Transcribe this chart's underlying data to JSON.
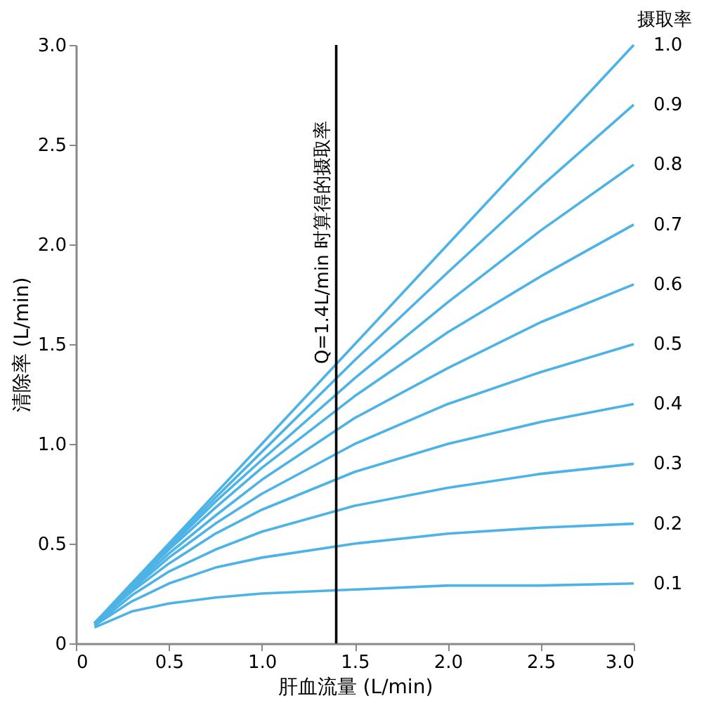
{
  "chart_data": {
    "type": "line",
    "xlabel": "肝血流量 (L/min)",
    "ylabel": "清除率 (L/min)",
    "legend_title": "摄取率",
    "x": [
      0.1,
      0.3,
      0.5,
      0.75,
      1.0,
      1.5,
      2.0,
      2.5,
      3.0
    ],
    "series": [
      {
        "name": "0.1",
        "color": "#4db3e6",
        "values": [
          0.08,
          0.16,
          0.2,
          0.23,
          0.25,
          0.27,
          0.29,
          0.29,
          0.3
        ]
      },
      {
        "name": "0.2",
        "color": "#4db3e6",
        "values": [
          0.09,
          0.21,
          0.3,
          0.38,
          0.43,
          0.5,
          0.55,
          0.58,
          0.6
        ]
      },
      {
        "name": "0.3",
        "color": "#4db3e6",
        "values": [
          0.09,
          0.24,
          0.36,
          0.47,
          0.56,
          0.69,
          0.78,
          0.85,
          0.9
        ]
      },
      {
        "name": "0.4",
        "color": "#4db3e6",
        "values": [
          0.1,
          0.26,
          0.4,
          0.55,
          0.67,
          0.86,
          1.0,
          1.11,
          1.2
        ]
      },
      {
        "name": "0.5",
        "color": "#4db3e6",
        "values": [
          0.1,
          0.27,
          0.43,
          0.6,
          0.75,
          1.0,
          1.2,
          1.36,
          1.5
        ]
      },
      {
        "name": "0.6",
        "color": "#4db3e6",
        "values": [
          0.1,
          0.28,
          0.45,
          0.64,
          0.82,
          1.13,
          1.38,
          1.61,
          1.8
        ]
      },
      {
        "name": "0.7",
        "color": "#4db3e6",
        "values": [
          0.1,
          0.29,
          0.47,
          0.68,
          0.88,
          1.24,
          1.56,
          1.84,
          2.1
        ]
      },
      {
        "name": "0.8",
        "color": "#4db3e6",
        "values": [
          0.1,
          0.29,
          0.48,
          0.71,
          0.92,
          1.33,
          1.71,
          2.07,
          2.4
        ]
      },
      {
        "name": "0.9",
        "color": "#4db3e6",
        "values": [
          0.1,
          0.3,
          0.49,
          0.73,
          0.96,
          1.42,
          1.86,
          2.29,
          2.7
        ]
      },
      {
        "name": "1.0",
        "color": "#4db3e6",
        "values": [
          0.1,
          0.3,
          0.5,
          0.75,
          1.0,
          1.5,
          2.0,
          2.5,
          3.0
        ]
      }
    ],
    "xlim": [
      0,
      3.0
    ],
    "xticks": [
      0,
      0.5,
      {
        "value": 1,
        "label": "1.0"
      },
      1.5,
      {
        "value": 2,
        "label": "2.0"
      },
      2.5,
      {
        "value": 3,
        "label": "3.0"
      }
    ],
    "ylim": [
      0,
      3.0
    ],
    "yticks": [
      0,
      0.5,
      {
        "value": 1,
        "label": "1.0"
      },
      1.5,
      {
        "value": 2,
        "label": "2.0"
      },
      2.5,
      {
        "value": 3,
        "label": "3.0"
      }
    ],
    "ref_lines": [
      {
        "axis": "x",
        "value": 1.4,
        "label": "Q=1.4L/min 时算得的摄取率",
        "color": "#000000"
      }
    ],
    "grid": false,
    "marker": "none",
    "line_style": "solid"
  }
}
